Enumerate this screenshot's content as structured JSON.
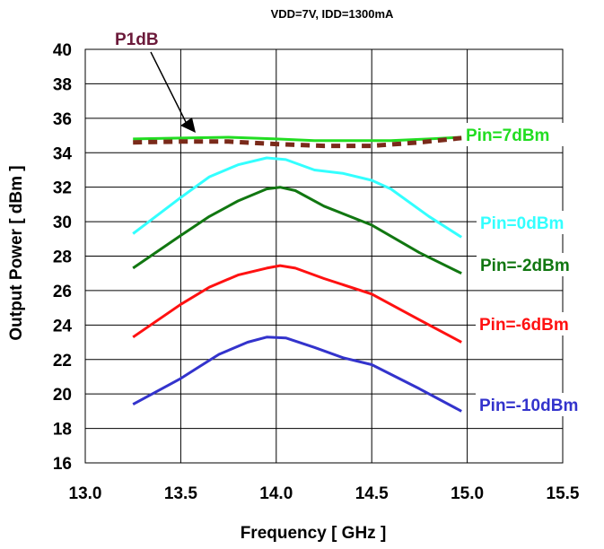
{
  "chart_data": {
    "type": "line",
    "title": "VDD=7V, IDD=1300mA",
    "xlabel": "Frequency [ GHz ]",
    "ylabel": "Output Power [ dBm ]",
    "xlim": [
      13.0,
      15.5
    ],
    "ylim": [
      16,
      40
    ],
    "x_ticks": [
      "13.0",
      "13.5",
      "14.0",
      "14.5",
      "15.0",
      "15.5"
    ],
    "y_ticks": [
      "16",
      "18",
      "20",
      "22",
      "24",
      "26",
      "28",
      "30",
      "32",
      "34",
      "36",
      "38",
      "40"
    ],
    "grid": true,
    "series": [
      {
        "name": "Pin=7dBm",
        "color": "#22dd22",
        "dashed": false,
        "x": [
          13.25,
          13.5,
          13.75,
          14.0,
          14.2,
          14.4,
          14.6,
          14.8,
          14.97
        ],
        "y": [
          34.8,
          34.85,
          34.9,
          34.8,
          34.7,
          34.7,
          34.7,
          34.8,
          34.9
        ]
      },
      {
        "name": "P1dB",
        "color": "#7a2a1a",
        "dashed": true,
        "x": [
          13.25,
          13.5,
          13.75,
          14.0,
          14.25,
          14.5,
          14.75,
          14.97
        ],
        "y": [
          34.6,
          34.65,
          34.65,
          34.5,
          34.4,
          34.4,
          34.6,
          34.85
        ]
      },
      {
        "name": "Pin=0dBm",
        "color": "#33ffff",
        "dashed": false,
        "x": [
          13.25,
          13.5,
          13.65,
          13.8,
          13.95,
          14.05,
          14.2,
          14.35,
          14.5,
          14.6,
          14.8,
          14.97
        ],
        "y": [
          29.3,
          31.4,
          32.6,
          33.3,
          33.7,
          33.6,
          33.0,
          32.8,
          32.4,
          31.9,
          30.3,
          29.1
        ]
      },
      {
        "name": "Pin=-2dBm",
        "color": "#117711",
        "dashed": false,
        "x": [
          13.25,
          13.5,
          13.65,
          13.8,
          13.95,
          14.02,
          14.1,
          14.25,
          14.5,
          14.75,
          14.97
        ],
        "y": [
          27.3,
          29.2,
          30.3,
          31.2,
          31.9,
          32.0,
          31.8,
          30.9,
          29.8,
          28.2,
          27.0
        ]
      },
      {
        "name": "Pin=-6dBm",
        "color": "#ff1111",
        "dashed": false,
        "x": [
          13.25,
          13.5,
          13.65,
          13.8,
          13.95,
          14.02,
          14.1,
          14.25,
          14.5,
          14.75,
          14.97
        ],
        "y": [
          23.3,
          25.2,
          26.2,
          26.9,
          27.3,
          27.45,
          27.3,
          26.7,
          25.8,
          24.3,
          23.0
        ]
      },
      {
        "name": "Pin=-10dBm",
        "color": "#3333cc",
        "dashed": false,
        "x": [
          13.25,
          13.5,
          13.6,
          13.7,
          13.85,
          13.95,
          14.05,
          14.2,
          14.35,
          14.5,
          14.75,
          14.97
        ],
        "y": [
          19.4,
          20.9,
          21.6,
          22.3,
          23.0,
          23.3,
          23.25,
          22.7,
          22.1,
          21.7,
          20.3,
          19.0
        ]
      }
    ],
    "annotations": [
      {
        "text": "Pin=7dBm",
        "color": "#22dd22"
      },
      {
        "text": "Pin=0dBm",
        "color": "#33ffff"
      },
      {
        "text": "Pin=-2dBm",
        "color": "#117711"
      },
      {
        "text": "Pin=-6dBm",
        "color": "#ff1111"
      },
      {
        "text": "Pin=-10dBm",
        "color": "#3333cc"
      },
      {
        "text": "P1dB",
        "color": "#6b1a3a"
      }
    ]
  }
}
